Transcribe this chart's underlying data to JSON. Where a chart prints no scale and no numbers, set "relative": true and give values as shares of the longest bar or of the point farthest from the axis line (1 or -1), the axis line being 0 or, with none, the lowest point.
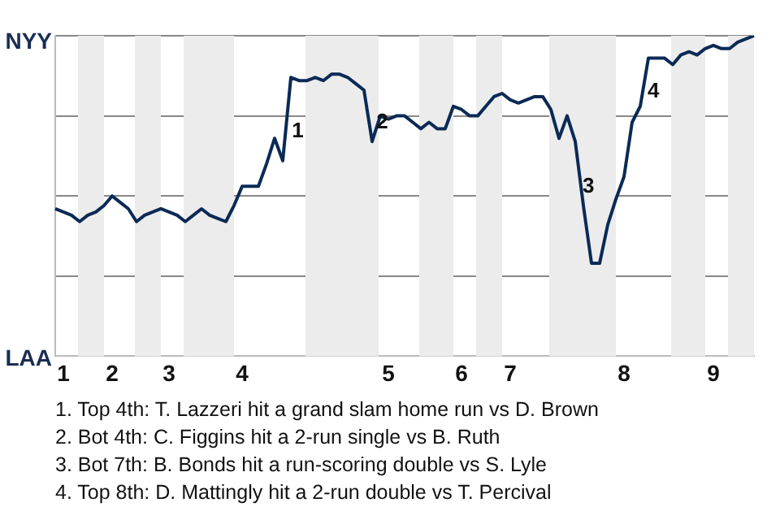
{
  "chart_data": {
    "type": "line",
    "relative": true,
    "categories": [
      null,
      "1",
      null,
      null,
      null,
      null,
      null,
      "2",
      null,
      null,
      null,
      null,
      null,
      null,
      "3",
      null,
      null,
      null,
      null,
      null,
      null,
      null,
      null,
      "4",
      null,
      null,
      null,
      null,
      null,
      null,
      null,
      null,
      null,
      null,
      null,
      null,
      null,
      null,
      null,
      null,
      null,
      "5",
      null,
      null,
      null,
      null,
      null,
      null,
      null,
      null,
      "6",
      null,
      null,
      null,
      null,
      null,
      "7",
      null,
      null,
      null,
      null,
      null,
      null,
      null,
      null,
      null,
      null,
      null,
      null,
      null,
      "8",
      null,
      null,
      null,
      null,
      null,
      null,
      null,
      null,
      null,
      null,
      "9",
      null,
      null,
      null,
      null,
      null
    ],
    "series": [
      {
        "color": "#0b2a55",
        "values": [
          0.46,
          0.45,
          0.44,
          0.42,
          0.44,
          0.45,
          0.47,
          0.5,
          0.48,
          0.46,
          0.42,
          0.44,
          0.45,
          0.46,
          0.45,
          0.44,
          0.42,
          0.44,
          0.46,
          0.44,
          0.43,
          0.42,
          0.47,
          0.53,
          0.53,
          0.53,
          0.6,
          0.68,
          0.61,
          0.87,
          0.86,
          0.86,
          0.87,
          0.86,
          0.88,
          0.88,
          0.87,
          0.85,
          0.83,
          0.67,
          0.75,
          0.74,
          0.75,
          0.75,
          0.73,
          0.71,
          0.73,
          0.71,
          0.71,
          0.78,
          0.77,
          0.75,
          0.75,
          0.78,
          0.81,
          0.82,
          0.8,
          0.79,
          0.8,
          0.81,
          0.81,
          0.77,
          0.68,
          0.75,
          0.67,
          0.47,
          0.29,
          0.29,
          0.41,
          0.49,
          0.56,
          0.73,
          0.78,
          0.93,
          0.93,
          0.93,
          0.91,
          0.94,
          0.95,
          0.94,
          0.96,
          0.97,
          0.96,
          0.96,
          0.98,
          0.99,
          1
        ]
      }
    ],
    "grid": "y",
    "legend": false,
    "marker": "none",
    "line_style": "solid",
    "annotations": [
      "NYY",
      "LAA",
      "1",
      "2",
      "3",
      "4",
      "1. Top 4th: T. Lazzeri hit a grand slam home run vs D. Brown",
      "2. Bot 4th: C. Figgins hit a 2-run single vs B. Ruth",
      "3. Bot 7th: B. Bonds hit a run-scoring double vs S. Lyle",
      "4. Top 8th: D. Mattingly hit a 2-run double vs T. Percival"
    ]
  }
}
